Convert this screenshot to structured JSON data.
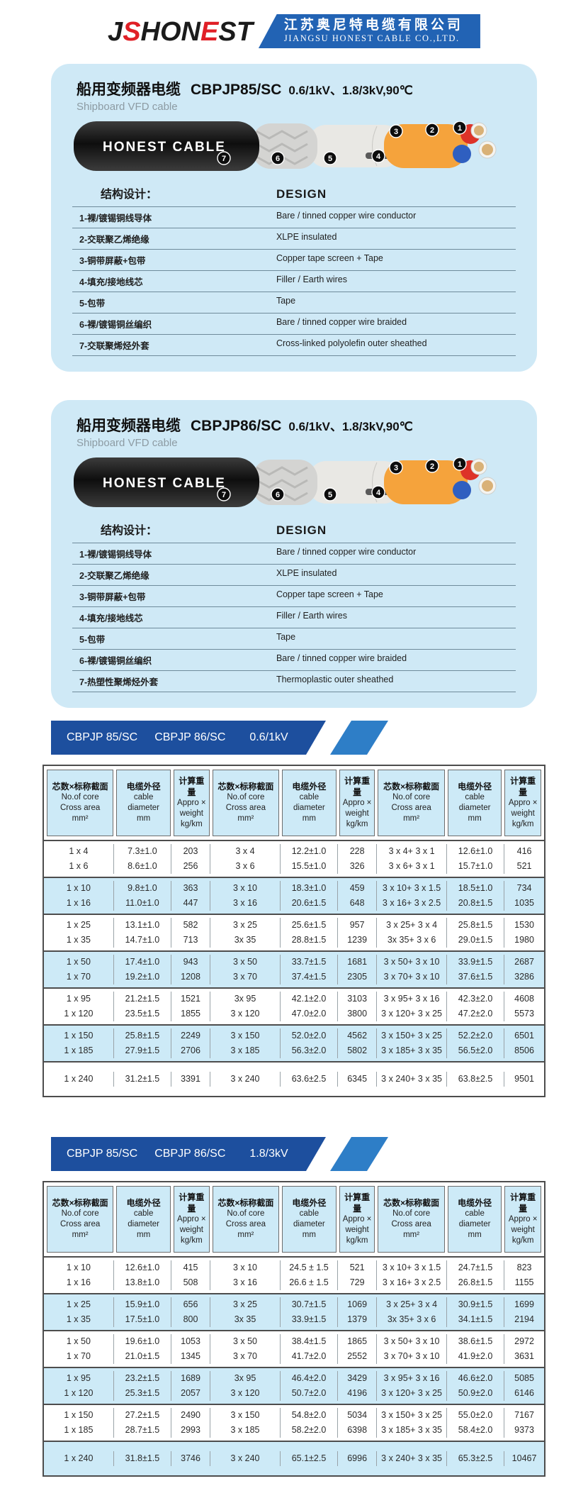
{
  "header": {
    "logo": {
      "p1": "JS",
      "p2": "HON",
      "p3": "E",
      "p4": "ST"
    },
    "company_cn": "江苏奥尼特电缆有限公司",
    "company_en": "JIANGSU HONEST CABLE CO.,LTD."
  },
  "products": [
    {
      "title_cn": "船用变频器电缆",
      "model": "CBPJP85/SC",
      "spec": "0.6/1kV、1.8/3kV,90℃",
      "subtitle": "Shipboard VFD cable",
      "cable_label": "HONEST CABLE",
      "markers": [
        "1",
        "2",
        "3",
        "4",
        "5",
        "6",
        "7"
      ],
      "design_title_cn": "结构设计：",
      "design_title_en": "DESIGN",
      "design_rows": [
        {
          "cn": "1-裸/镀锡铜线导体",
          "en": "Bare / tinned copper wire conductor"
        },
        {
          "cn": "2-交联聚乙烯绝缘",
          "en": "XLPE insulated"
        },
        {
          "cn": "3-铜带屏蔽+包带",
          "en": "Copper tape screen + Tape"
        },
        {
          "cn": "4-填充/接地线芯",
          "en": "Filler / Earth wires"
        },
        {
          "cn": "5-包带",
          "en": "Tape"
        },
        {
          "cn": "6-裸/镀锡铜丝编织",
          "en": "Bare / tinned copper wire braided"
        },
        {
          "cn": "7-交联聚烯烃外套",
          "en": "Cross-linked  polyolefin outer sheathed"
        }
      ]
    },
    {
      "title_cn": "船用变频器电缆",
      "model": "CBPJP86/SC",
      "spec": "0.6/1kV、1.8/3kV,90℃",
      "subtitle": "Shipboard VFD cable",
      "cable_label": "HONEST CABLE",
      "markers": [
        "1",
        "2",
        "3",
        "4",
        "5",
        "6",
        "7"
      ],
      "design_title_cn": "结构设计：",
      "design_title_en": "DESIGN",
      "design_rows": [
        {
          "cn": "1-裸/镀锡铜线导体",
          "en": "Bare / tinned copper wire conductor"
        },
        {
          "cn": "2-交联聚乙烯绝缘",
          "en": "XLPE insulated"
        },
        {
          "cn": "3-铜带屏蔽+包带",
          "en": "Copper tape screen + Tape"
        },
        {
          "cn": "4-填充/接地线芯",
          "en": "Filler / Earth wires"
        },
        {
          "cn": "5-包带",
          "en": "Tape"
        },
        {
          "cn": "6-裸/镀锡铜丝编织",
          "en": "Bare / tinned copper wire braided"
        },
        {
          "cn": "7-热塑性聚烯烃外套",
          "en": "Thermoplastic outer sheathed"
        }
      ]
    }
  ],
  "tables": [
    {
      "banner": {
        "model1": "CBPJP 85/SC",
        "model2": "CBPJP 86/SC",
        "voltage": "0.6/1kV"
      },
      "col_headers": [
        {
          "cn": "芯数×标称截面",
          "line1": "No.of core",
          "line2": "Cross area",
          "unit": "mm²"
        },
        {
          "cn": "电缆外径",
          "line1": "cable",
          "line2": "diameter",
          "unit": "mm"
        },
        {
          "cn": "计算重量",
          "line1": "Appro ×",
          "line2": "weight",
          "unit": "kg/km"
        }
      ],
      "row_groups": [
        {
          "shaded": false,
          "rows": [
            [
              "1 x 4",
              "7.3±1.0",
              "203",
              "3 x 4",
              "12.2±1.0",
              "228",
              "3 x 4+ 3 x 1",
              "12.6±1.0",
              "416"
            ],
            [
              "1 x 6",
              "8.6±1.0",
              "256",
              "3 x 6",
              "15.5±1.0",
              "326",
              "3 x 6+ 3 x 1",
              "15.7±1.0",
              "521"
            ]
          ]
        },
        {
          "shaded": true,
          "rows": [
            [
              "1 x 10",
              "9.8±1.0",
              "363",
              "3 x 10",
              "18.3±1.0",
              "459",
              "3 x 10+ 3 x 1.5",
              "18.5±1.0",
              "734"
            ],
            [
              "1 x 16",
              "11.0±1.0",
              "447",
              "3 x 16",
              "20.6±1.5",
              "648",
              "3 x 16+ 3 x 2.5",
              "20.8±1.5",
              "1035"
            ]
          ]
        },
        {
          "shaded": false,
          "rows": [
            [
              "1 x 25",
              "13.1±1.0",
              "582",
              "3 x 25",
              "25.6±1.5",
              "957",
              "3 x 25+ 3 x 4",
              "25.8±1.5",
              "1530"
            ],
            [
              "1 x 35",
              "14.7±1.0",
              "713",
              "3x 35",
              "28.8±1.5",
              "1239",
              "3x 35+ 3 x 6",
              "29.0±1.5",
              "1980"
            ]
          ]
        },
        {
          "shaded": true,
          "rows": [
            [
              "1 x 50",
              "17.4±1.0",
              "943",
              "3 x 50",
              "33.7±1.5",
              "1681",
              "3 x 50+ 3 x 10",
              "33.9±1.5",
              "2687"
            ],
            [
              "1 x 70",
              "19.2±1.0",
              "1208",
              "3 x 70",
              "37.4±1.5",
              "2305",
              "3 x 70+ 3 x 10",
              "37.6±1.5",
              "3286"
            ]
          ]
        },
        {
          "shaded": false,
          "rows": [
            [
              "1 x 95",
              "21.2±1.5",
              "1521",
              "3x 95",
              "42.1±2.0",
              "3103",
              "3 x 95+ 3 x 16",
              "42.3±2.0",
              "4608"
            ],
            [
              "1 x 120",
              "23.5±1.5",
              "1855",
              "3 x 120",
              "47.0±2.0",
              "3800",
              "3 x 120+ 3 x 25",
              "47.2±2.0",
              "5573"
            ]
          ]
        },
        {
          "shaded": true,
          "rows": [
            [
              "1 x 150",
              "25.8±1.5",
              "2249",
              "3 x 150",
              "52.0±2.0",
              "4562",
              "3 x 150+ 3 x 25",
              "52.2±2.0",
              "6501"
            ],
            [
              "1 x 185",
              "27.9±1.5",
              "2706",
              "3 x 185",
              "56.3±2.0",
              "5802",
              "3 x 185+ 3 x 35",
              "56.5±2.0",
              "8506"
            ]
          ]
        },
        {
          "shaded": false,
          "rows": [
            [
              "1 x 240",
              "31.2±1.5",
              "3391",
              "3 x 240",
              "63.6±2.5",
              "6345",
              "3 x 240+ 3 x 35",
              "63.8±2.5",
              "9501"
            ]
          ]
        }
      ]
    },
    {
      "banner": {
        "model1": "CBPJP 85/SC",
        "model2": "CBPJP 86/SC",
        "voltage": "1.8/3kV"
      },
      "col_headers": [
        {
          "cn": "芯数×标称截面",
          "line1": "No.of core",
          "line2": "Cross area",
          "unit": "mm²"
        },
        {
          "cn": "电缆外径",
          "line1": "cable",
          "line2": "diameter",
          "unit": "mm"
        },
        {
          "cn": "计算重量",
          "line1": "Appro ×",
          "line2": "weight",
          "unit": "kg/km"
        }
      ],
      "row_groups": [
        {
          "shaded": false,
          "rows": [
            [
              "1 x 10",
              "12.6±1.0",
              "415",
              "3 x 10",
              "24.5 ± 1.5",
              "521",
              "3 x 10+ 3 x 1.5",
              "24.7±1.5",
              "823"
            ],
            [
              "1 x 16",
              "13.8±1.0",
              "508",
              "3 x 16",
              "26.6 ± 1.5",
              "729",
              "3 x 16+ 3 x 2.5",
              "26.8±1.5",
              "1155"
            ]
          ]
        },
        {
          "shaded": true,
          "rows": [
            [
              "1 x 25",
              "15.9±1.0",
              "656",
              "3 x 25",
              "30.7±1.5",
              "1069",
              "3 x 25+ 3 x 4",
              "30.9±1.5",
              "1699"
            ],
            [
              "1 x 35",
              "17.5±1.0",
              "800",
              "3x 35",
              "33.9±1.5",
              "1379",
              "3x 35+ 3 x 6",
              "34.1±1.5",
              "2194"
            ]
          ]
        },
        {
          "shaded": false,
          "rows": [
            [
              "1 x 50",
              "19.6±1.0",
              "1053",
              "3 x 50",
              "38.4±1.5",
              "1865",
              "3 x 50+ 3 x 10",
              "38.6±1.5",
              "2972"
            ],
            [
              "1 x 70",
              "21.0±1.5",
              "1345",
              "3 x 70",
              "41.7±2.0",
              "2552",
              "3 x 70+ 3 x 10",
              "41.9±2.0",
              "3631"
            ]
          ]
        },
        {
          "shaded": true,
          "rows": [
            [
              "1 x 95",
              "23.2±1.5",
              "1689",
              "3x 95",
              "46.4±2.0",
              "3429",
              "3 x 95+ 3 x 16",
              "46.6±2.0",
              "5085"
            ],
            [
              "1 x 120",
              "25.3±1.5",
              "2057",
              "3 x 120",
              "50.7±2.0",
              "4196",
              "3 x 120+ 3 x 25",
              "50.9±2.0",
              "6146"
            ]
          ]
        },
        {
          "shaded": false,
          "rows": [
            [
              "1 x 150",
              "27.2±1.5",
              "2490",
              "3 x 150",
              "54.8±2.0",
              "5034",
              "3 x 150+ 3 x 25",
              "55.0±2.0",
              "7167"
            ],
            [
              "1 x 185",
              "28.7±1.5",
              "2993",
              "3 x 185",
              "58.2±2.0",
              "6398",
              "3 x 185+ 3 x 35",
              "58.4±2.0",
              "9373"
            ]
          ]
        },
        {
          "shaded": true,
          "rows": [
            [
              "1 x 240",
              "31.8±1.5",
              "3746",
              "3 x 240",
              "65.1±2.5",
              "6996",
              "3 x 240+ 3 x 35",
              "65.3±2.5",
              "10467"
            ]
          ]
        }
      ]
    }
  ]
}
